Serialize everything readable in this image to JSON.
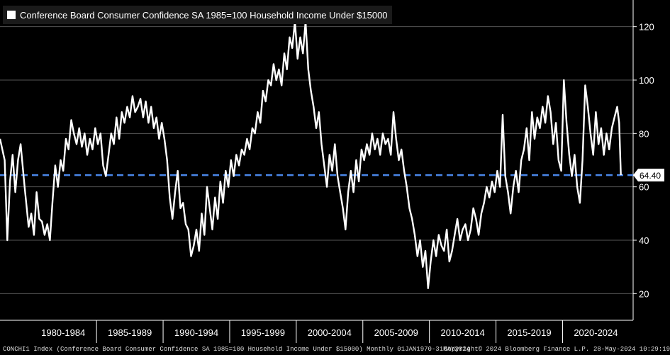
{
  "chart_data": {
    "type": "line",
    "title": "Conference Board Consumer Confidence SA 1985=100 Household Income Under $15000",
    "series_name": "Conference Board Consumer Confidence SA 1985=100 Household Income Under $15000",
    "ylim": [
      10,
      130
    ],
    "yticks": [
      20,
      40,
      60,
      80,
      100,
      120
    ],
    "xlim": [
      1977.75,
      2025.3
    ],
    "xtick_labels": [
      "1980-1984",
      "1985-1989",
      "1990-1994",
      "1995-1999",
      "2000-2004",
      "2005-2009",
      "2010-2014",
      "2015-2019",
      "2020-2024"
    ],
    "xtick_centers": [
      1982.5,
      1987.5,
      1992.5,
      1997.5,
      2002.5,
      2007.5,
      2012.5,
      2017.5,
      2022.5
    ],
    "xtick_bounds": [
      1985,
      1990,
      1995,
      2000,
      2005,
      2010,
      2015,
      2020
    ],
    "reference_line": {
      "value": 64.4,
      "label": "64.40",
      "color": "#4a86e8",
      "style": "dashed"
    },
    "last_value": 64.4,
    "line_color": "#ffffff",
    "grid": true,
    "series": [
      [
        1977.75,
        78
      ],
      [
        1978.1,
        70
      ],
      [
        1978.3,
        40
      ],
      [
        1978.5,
        62
      ],
      [
        1978.7,
        72
      ],
      [
        1978.9,
        58
      ],
      [
        1979.1,
        70
      ],
      [
        1979.3,
        76
      ],
      [
        1979.6,
        60
      ],
      [
        1979.9,
        45
      ],
      [
        1980.1,
        50
      ],
      [
        1980.3,
        42
      ],
      [
        1980.5,
        58
      ],
      [
        1980.7,
        48
      ],
      [
        1980.9,
        47
      ],
      [
        1981.1,
        42
      ],
      [
        1981.3,
        46
      ],
      [
        1981.5,
        40
      ],
      [
        1981.7,
        55
      ],
      [
        1981.9,
        68
      ],
      [
        1982.1,
        60
      ],
      [
        1982.3,
        70
      ],
      [
        1982.5,
        66
      ],
      [
        1982.7,
        78
      ],
      [
        1982.9,
        74
      ],
      [
        1983.1,
        85
      ],
      [
        1983.3,
        80
      ],
      [
        1983.5,
        76
      ],
      [
        1983.7,
        82
      ],
      [
        1983.9,
        75
      ],
      [
        1984.1,
        80
      ],
      [
        1984.3,
        72
      ],
      [
        1984.5,
        78
      ],
      [
        1984.7,
        74
      ],
      [
        1984.9,
        82
      ],
      [
        1985.1,
        76
      ],
      [
        1985.3,
        80
      ],
      [
        1985.5,
        68
      ],
      [
        1985.7,
        64
      ],
      [
        1985.9,
        72
      ],
      [
        1986.1,
        80
      ],
      [
        1986.3,
        76
      ],
      [
        1986.5,
        86
      ],
      [
        1986.7,
        78
      ],
      [
        1986.9,
        88
      ],
      [
        1987.1,
        84
      ],
      [
        1987.3,
        90
      ],
      [
        1987.5,
        86
      ],
      [
        1987.7,
        94
      ],
      [
        1987.9,
        88
      ],
      [
        1988.1,
        90
      ],
      [
        1988.3,
        93
      ],
      [
        1988.5,
        86
      ],
      [
        1988.7,
        92
      ],
      [
        1988.9,
        84
      ],
      [
        1989.1,
        90
      ],
      [
        1989.3,
        82
      ],
      [
        1989.5,
        86
      ],
      [
        1989.7,
        78
      ],
      [
        1989.9,
        84
      ],
      [
        1990.1,
        78
      ],
      [
        1990.3,
        70
      ],
      [
        1990.5,
        56
      ],
      [
        1990.7,
        48
      ],
      [
        1990.9,
        58
      ],
      [
        1991.1,
        66
      ],
      [
        1991.3,
        52
      ],
      [
        1991.5,
        54
      ],
      [
        1991.7,
        46
      ],
      [
        1991.9,
        44
      ],
      [
        1992.1,
        34
      ],
      [
        1992.3,
        38
      ],
      [
        1992.5,
        44
      ],
      [
        1992.7,
        36
      ],
      [
        1992.9,
        50
      ],
      [
        1993.1,
        42
      ],
      [
        1993.3,
        60
      ],
      [
        1993.5,
        52
      ],
      [
        1993.7,
        44
      ],
      [
        1993.9,
        56
      ],
      [
        1994.1,
        48
      ],
      [
        1994.3,
        62
      ],
      [
        1994.5,
        54
      ],
      [
        1994.7,
        66
      ],
      [
        1994.9,
        60
      ],
      [
        1995.1,
        70
      ],
      [
        1995.3,
        64
      ],
      [
        1995.5,
        72
      ],
      [
        1995.7,
        68
      ],
      [
        1995.9,
        74
      ],
      [
        1996.1,
        72
      ],
      [
        1996.3,
        78
      ],
      [
        1996.5,
        74
      ],
      [
        1996.7,
        82
      ],
      [
        1996.9,
        80
      ],
      [
        1997.1,
        88
      ],
      [
        1997.3,
        84
      ],
      [
        1997.5,
        96
      ],
      [
        1997.7,
        92
      ],
      [
        1997.9,
        100
      ],
      [
        1998.1,
        98
      ],
      [
        1998.3,
        106
      ],
      [
        1998.5,
        100
      ],
      [
        1998.7,
        104
      ],
      [
        1998.9,
        98
      ],
      [
        1999.1,
        110
      ],
      [
        1999.3,
        104
      ],
      [
        1999.5,
        116
      ],
      [
        1999.7,
        112
      ],
      [
        1999.9,
        122
      ],
      [
        2000.1,
        108
      ],
      [
        2000.3,
        116
      ],
      [
        2000.5,
        110
      ],
      [
        2000.7,
        122
      ],
      [
        2000.9,
        104
      ],
      [
        2001.1,
        96
      ],
      [
        2001.3,
        90
      ],
      [
        2001.5,
        82
      ],
      [
        2001.7,
        88
      ],
      [
        2001.9,
        76
      ],
      [
        2002.1,
        68
      ],
      [
        2002.3,
        60
      ],
      [
        2002.5,
        72
      ],
      [
        2002.7,
        66
      ],
      [
        2002.9,
        76
      ],
      [
        2003.1,
        64
      ],
      [
        2003.3,
        58
      ],
      [
        2003.5,
        52
      ],
      [
        2003.7,
        44
      ],
      [
        2003.9,
        58
      ],
      [
        2004.1,
        66
      ],
      [
        2004.3,
        58
      ],
      [
        2004.5,
        70
      ],
      [
        2004.7,
        62
      ],
      [
        2004.9,
        74
      ],
      [
        2005.1,
        70
      ],
      [
        2005.3,
        76
      ],
      [
        2005.5,
        72
      ],
      [
        2005.7,
        80
      ],
      [
        2005.9,
        74
      ],
      [
        2006.1,
        78
      ],
      [
        2006.3,
        72
      ],
      [
        2006.5,
        80
      ],
      [
        2006.7,
        76
      ],
      [
        2006.9,
        78
      ],
      [
        2007.1,
        72
      ],
      [
        2007.3,
        88
      ],
      [
        2007.5,
        78
      ],
      [
        2007.7,
        70
      ],
      [
        2007.9,
        74
      ],
      [
        2008.1,
        66
      ],
      [
        2008.3,
        60
      ],
      [
        2008.5,
        52
      ],
      [
        2008.7,
        48
      ],
      [
        2008.9,
        42
      ],
      [
        2009.1,
        34
      ],
      [
        2009.3,
        40
      ],
      [
        2009.5,
        30
      ],
      [
        2009.7,
        36
      ],
      [
        2009.9,
        22
      ],
      [
        2010.1,
        32
      ],
      [
        2010.3,
        40
      ],
      [
        2010.5,
        34
      ],
      [
        2010.7,
        42
      ],
      [
        2010.9,
        38
      ],
      [
        2011.1,
        36
      ],
      [
        2011.3,
        44
      ],
      [
        2011.5,
        32
      ],
      [
        2011.7,
        36
      ],
      [
        2011.9,
        42
      ],
      [
        2012.1,
        48
      ],
      [
        2012.3,
        40
      ],
      [
        2012.5,
        44
      ],
      [
        2012.7,
        46
      ],
      [
        2012.9,
        40
      ],
      [
        2013.1,
        44
      ],
      [
        2013.3,
        52
      ],
      [
        2013.5,
        48
      ],
      [
        2013.7,
        42
      ],
      [
        2013.9,
        50
      ],
      [
        2014.1,
        54
      ],
      [
        2014.3,
        60
      ],
      [
        2014.5,
        56
      ],
      [
        2014.7,
        62
      ],
      [
        2014.9,
        58
      ],
      [
        2015.1,
        66
      ],
      [
        2015.3,
        60
      ],
      [
        2015.5,
        87
      ],
      [
        2015.7,
        64
      ],
      [
        2015.9,
        58
      ],
      [
        2016.1,
        50
      ],
      [
        2016.3,
        60
      ],
      [
        2016.5,
        66
      ],
      [
        2016.7,
        58
      ],
      [
        2016.9,
        70
      ],
      [
        2017.1,
        74
      ],
      [
        2017.3,
        82
      ],
      [
        2017.5,
        70
      ],
      [
        2017.7,
        88
      ],
      [
        2017.9,
        78
      ],
      [
        2018.1,
        86
      ],
      [
        2018.3,
        82
      ],
      [
        2018.5,
        90
      ],
      [
        2018.7,
        84
      ],
      [
        2018.9,
        94
      ],
      [
        2019.1,
        88
      ],
      [
        2019.3,
        76
      ],
      [
        2019.5,
        84
      ],
      [
        2019.7,
        70
      ],
      [
        2019.9,
        66
      ],
      [
        2020.1,
        100
      ],
      [
        2020.3,
        84
      ],
      [
        2020.5,
        72
      ],
      [
        2020.7,
        64
      ],
      [
        2020.9,
        72
      ],
      [
        2021.1,
        60
      ],
      [
        2021.3,
        54
      ],
      [
        2021.5,
        70
      ],
      [
        2021.7,
        98
      ],
      [
        2021.9,
        90
      ],
      [
        2022.1,
        80
      ],
      [
        2022.3,
        72
      ],
      [
        2022.5,
        88
      ],
      [
        2022.7,
        76
      ],
      [
        2022.9,
        82
      ],
      [
        2023.1,
        72
      ],
      [
        2023.3,
        80
      ],
      [
        2023.5,
        74
      ],
      [
        2023.7,
        82
      ],
      [
        2023.9,
        86
      ],
      [
        2024.1,
        90
      ],
      [
        2024.25,
        84
      ],
      [
        2024.38,
        64.4
      ]
    ]
  },
  "legend": {
    "label": "Conference Board Consumer Confidence SA 1985=100 Household Income Under $15000"
  },
  "footer": {
    "ticker": "CONCHI1 Index (Conference Board Consumer Confidence SA 1985=100 Household Income Under $15000)  Monthly 01JAN1970-31MAY2024",
    "copyright": "Copyright© 2024 Bloomberg Finance L.P.",
    "timestamp": "28-May-2024 10:29:19"
  }
}
